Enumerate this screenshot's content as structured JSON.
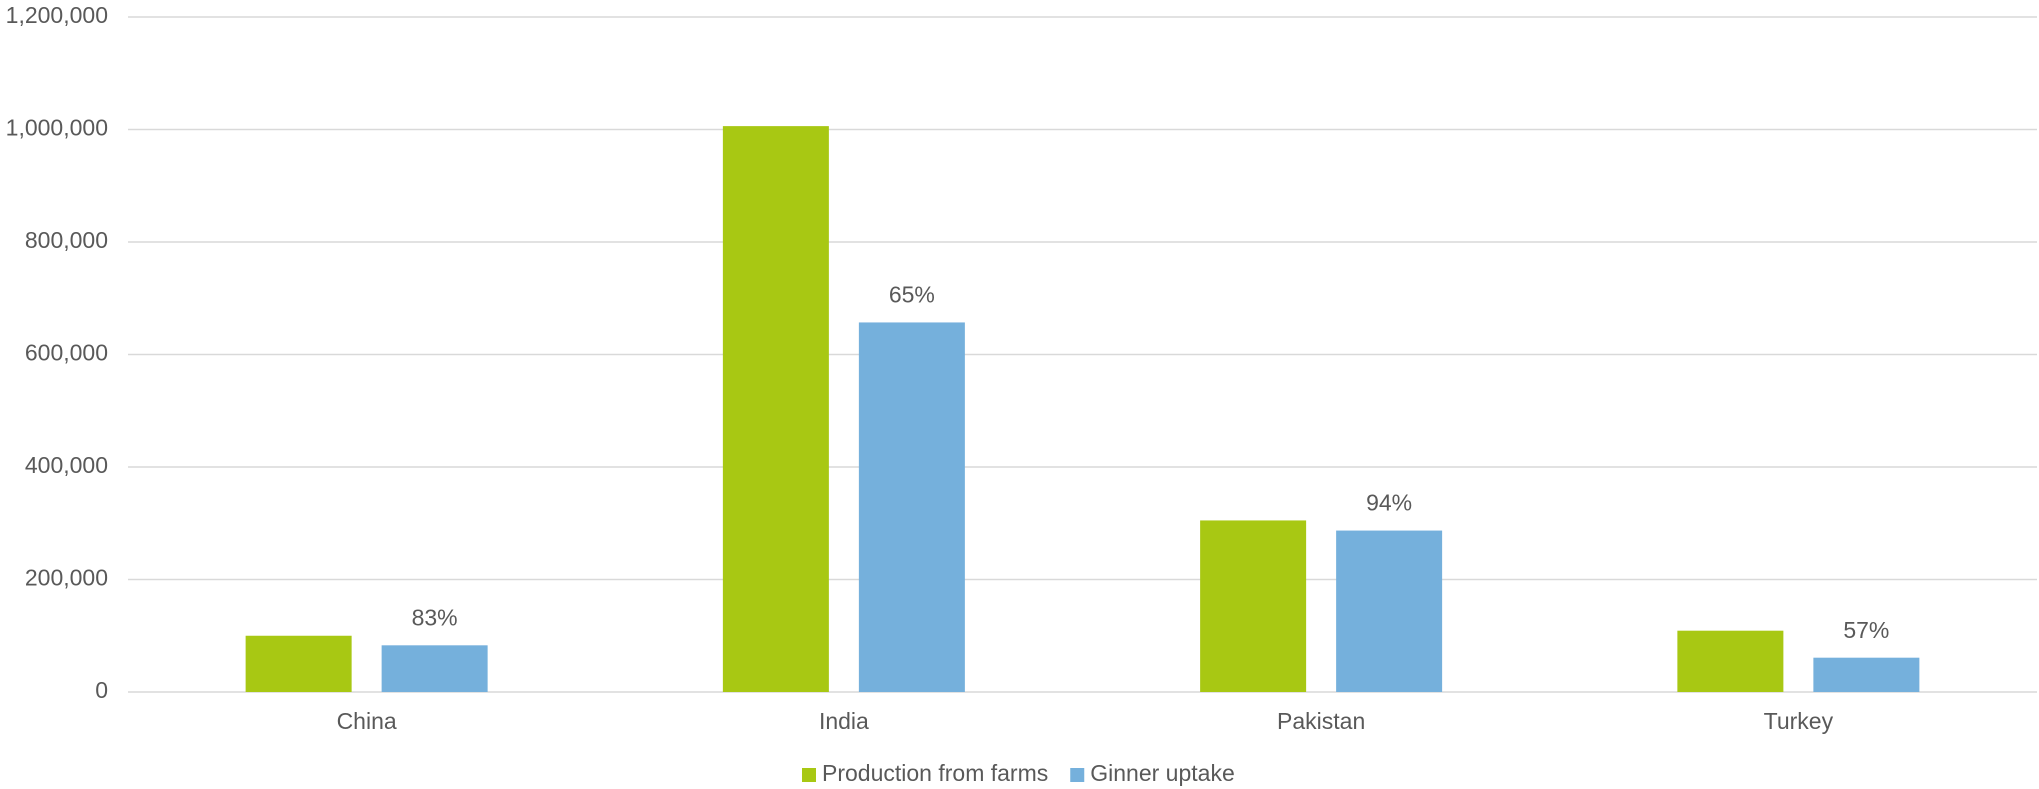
{
  "chart_data": {
    "type": "bar",
    "categories": [
      "China",
      "India",
      "Pakistan",
      "Turkey"
    ],
    "series": [
      {
        "name": "Production from farms",
        "color": "#a8c813",
        "values": [
          100000,
          1006000,
          305000,
          109000
        ]
      },
      {
        "name": "Ginner uptake",
        "color": "#75b0dc",
        "values": [
          83000,
          657000,
          287000,
          61000
        ],
        "labels": [
          "83%",
          "65%",
          "94%",
          "57%"
        ]
      }
    ],
    "ylim": [
      0,
      1200000
    ],
    "yticks": [
      0,
      {
        "value": 200000,
        "label": "200,000"
      },
      {
        "value": 400000,
        "label": "400,000"
      },
      {
        "value": 600000,
        "label": "600,000"
      },
      {
        "value": 800000,
        "label": "800,000"
      },
      {
        "value": 1000000,
        "label": "1,000,000"
      },
      {
        "value": 1200000,
        "label": "1,200,000"
      }
    ],
    "grid": true,
    "legend": "bottom"
  }
}
